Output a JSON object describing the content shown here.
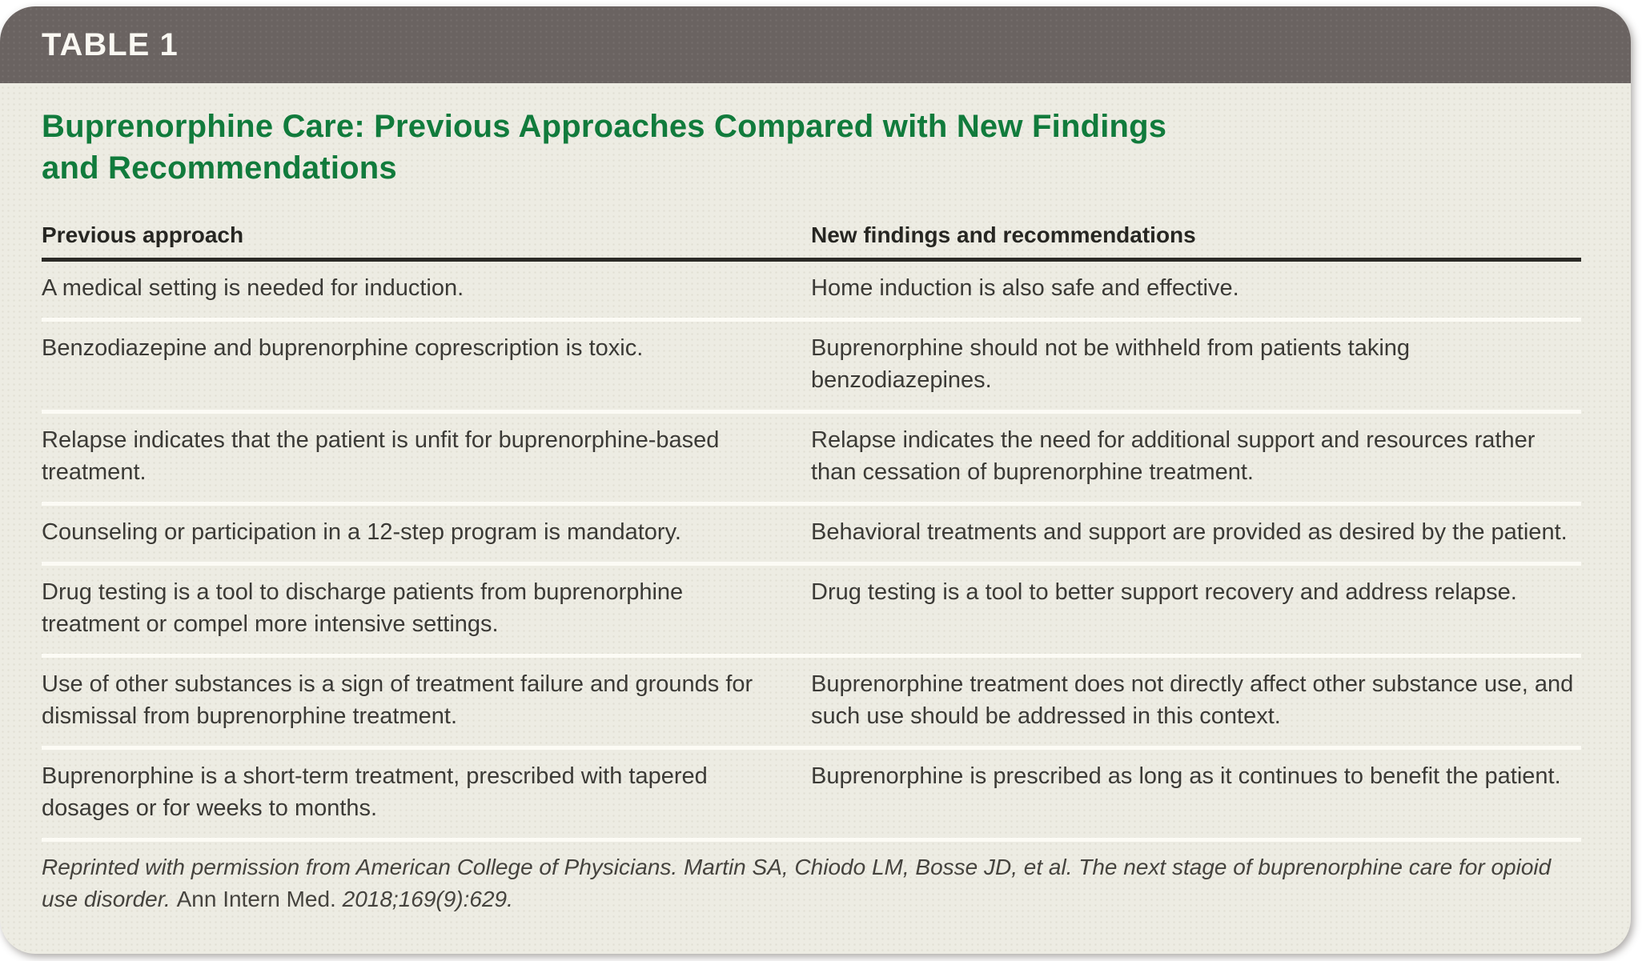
{
  "table_label": "TABLE 1",
  "title_line1": "Buprenorphine Care: Previous Approaches Compared with New Findings",
  "title_line2": "and Recommendations",
  "columns": [
    "Previous approach",
    "New findings and recommendations"
  ],
  "rows": [
    {
      "previous": "A medical setting is needed for induction.",
      "new": "Home induction is also safe and effective."
    },
    {
      "previous": "Benzodiazepine and buprenorphine coprescription is toxic.",
      "new": "Buprenorphine should not be withheld from patients taking benzodiazepines."
    },
    {
      "previous": "Relapse indicates that the patient is unfit for buprenorphine-based treatment.",
      "new": "Relapse indicates the need for additional support and resources rather than cessation of buprenorphine treatment."
    },
    {
      "previous": "Counseling or participation in a 12-step program is mandatory.",
      "new": "Behavioral treatments and support are provided as desired by the patient."
    },
    {
      "previous": "Drug testing is a tool to discharge patients from buprenorphine treatment or compel more intensive settings.",
      "new": "Drug testing is a tool to better support recovery and address relapse."
    },
    {
      "previous": "Use of other substances is a sign of treatment failure and grounds for dismissal from buprenorphine treatment.",
      "new": "Buprenorphine treatment does not directly affect other substance use, and such use should be addressed in this context."
    },
    {
      "previous": "Buprenorphine is a short-term treatment, prescribed with tapered dosages or for weeks to months.",
      "new": "Buprenorphine is prescribed as long as it continues to benefit the patient."
    }
  ],
  "footer": {
    "part1": "Reprinted with permission from American College of Physicians. Martin SA, Chiodo LM, Bosse JD, et al. The next stage of buprenorphine care for opioid use disorder. ",
    "part2": "Ann Intern Med.",
    "part3": " 2018;169(9):629."
  },
  "colors": {
    "header_bg": "#6a6361",
    "card_bg": "#edece3",
    "title_green": "#117b3c",
    "rule_dark": "#2b2a26",
    "rule_light": "#fcfbf5",
    "body_text": "#3b3a36",
    "header_text": "#faf8f2",
    "footer_text": "#45433e"
  }
}
